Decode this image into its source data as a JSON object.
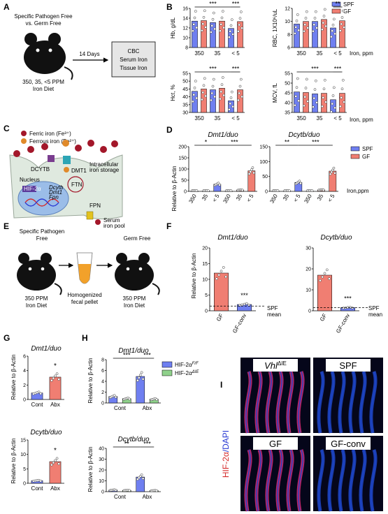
{
  "panel_letters": [
    "A",
    "B",
    "C",
    "D",
    "E",
    "F",
    "G",
    "H",
    "I"
  ],
  "colors": {
    "spf": "#6f7ff0",
    "gf": "#f07e72",
    "green": "#8fd18b",
    "iris_red": "#d42a77",
    "iris_blue": "#1e46c8"
  },
  "panelA": {
    "line1": "Specific Pathogen Free",
    "line2": "vs. Germ Free",
    "diet1": "350, 35, <5 PPM",
    "diet2": "Iron Diet",
    "arrow": "14 Days",
    "box": [
      "CBC",
      "Serum Iron",
      "Tissue Iron"
    ]
  },
  "panelB": {
    "legend": [
      {
        "name": "SPF",
        "color": "#6f7ff0"
      },
      {
        "name": "GF",
        "color": "#f07e72"
      }
    ],
    "x_title": "Iron, ppm",
    "groups": [
      "350",
      "35",
      "< 5"
    ],
    "charts": [
      {
        "ylabel": "Hb, g/dL",
        "yticks": [
          "8",
          "10",
          "12",
          "14",
          "16"
        ],
        "ymin": 8,
        "ymax": 16,
        "spf": [
          13.4,
          13.1,
          11.9
        ],
        "gf": [
          13.5,
          13.4,
          13.3
        ],
        "sig": [
          {
            "text": "***",
            "from": 0,
            "to": 4
          },
          {
            "text": "***",
            "from": 4,
            "to": 5
          }
        ]
      },
      {
        "ylabel": "RBC, 1X10⁶/uL",
        "yticks": [
          "6",
          "8",
          "10",
          "12"
        ],
        "ymin": 6,
        "ymax": 12,
        "spf": [
          9.6,
          10.0,
          9.0
        ],
        "gf": [
          10.0,
          10.3,
          10.1
        ],
        "sig": [
          {
            "text": "**",
            "from": 4,
            "to": 5
          }
        ]
      },
      {
        "ylabel": "Hct, %",
        "yticks": [
          "30",
          "35",
          "40",
          "45",
          "50",
          "55"
        ],
        "ymin": 30,
        "ymax": 55,
        "spf": [
          43.5,
          44.5,
          37.5
        ],
        "gf": [
          45.0,
          45.5,
          44.5
        ],
        "sig": [
          {
            "text": "***",
            "from": 0,
            "to": 4
          },
          {
            "text": "***",
            "from": 4,
            "to": 5
          }
        ]
      },
      {
        "ylabel": "MCV, fL",
        "yticks": [
          "35",
          "40",
          "45",
          "50",
          "55"
        ],
        "ymin": 35,
        "ymax": 55,
        "spf": [
          45.5,
          44.5,
          41.5
        ],
        "gf": [
          45.2,
          44.8,
          44.8
        ],
        "sig": [
          {
            "text": "***",
            "from": 0,
            "to": 4
          },
          {
            "text": "***",
            "from": 4,
            "to": 5
          }
        ]
      }
    ]
  },
  "panelC": {
    "ferric": "Ferric iron (Fe³⁺)",
    "ferrous": "Ferrous iron (Fe²⁺)",
    "dcytb": "DCYTB",
    "dmt1": "DMT1",
    "storage": [
      "Intracellular",
      "iron storage"
    ],
    "ftn": "FTN",
    "nucleus": "Nucleus",
    "hif": "HIF-2α",
    "genes": [
      "Dcytb",
      "Dmt1",
      "Fpn"
    ],
    "fpn": "FPN",
    "serum": [
      "Serum",
      "iron pool"
    ]
  },
  "panelD": {
    "ylabel": "Relative to β-Actin",
    "x_title": "Iron,ppm",
    "groups": [
      "350",
      "35",
      "< 5",
      "350",
      "35",
      "< 5"
    ],
    "legend": [
      {
        "name": "SPF",
        "color": "#6f7ff0"
      },
      {
        "name": "GF",
        "color": "#f07e72"
      }
    ],
    "charts": [
      {
        "title": "Dmt1/duo",
        "yticks": [
          "0",
          "50",
          "100",
          "150",
          "200"
        ],
        "ymax": 200,
        "values": [
          1,
          1,
          32,
          1,
          6,
          92
        ],
        "sig": [
          {
            "text": "*",
            "from": 0,
            "to": 2
          },
          {
            "text": "***",
            "from": 2,
            "to": 5
          }
        ]
      },
      {
        "title": "Dcytb/duo",
        "yticks": [
          "0",
          "50",
          "100",
          "150"
        ],
        "ymax": 150,
        "values": [
          1,
          1,
          30,
          1,
          5,
          68
        ],
        "sig": [
          {
            "text": "**",
            "from": 0,
            "to": 2
          },
          {
            "text": "***",
            "from": 2,
            "to": 5
          }
        ]
      }
    ]
  },
  "panelE": {
    "left_title": [
      "Specific Pathogen",
      "Free"
    ],
    "right_title": "Germ Free",
    "left_diet": [
      "350 PPM",
      "Iron Diet"
    ],
    "tube": [
      "Homogenized",
      "fecal pellet"
    ],
    "right_diet": [
      "350 PPM",
      "Iron Diet"
    ]
  },
  "panelF": {
    "ylabel": "Relative to β-Actin",
    "mean_label": [
      "SPF",
      "mean"
    ],
    "categories": [
      "GF",
      "GF-conv"
    ],
    "charts": [
      {
        "title": "Dmt1/duo",
        "yticks": [
          "0",
          "5",
          "10",
          "15",
          "20"
        ],
        "ymax": 20,
        "values": [
          12,
          2
        ],
        "spf_mean": 1.5,
        "sig": "***"
      },
      {
        "title": "Dcytb/duo",
        "yticks": [
          "0",
          "10",
          "20",
          "30"
        ],
        "ymax": 30,
        "values": [
          17,
          1.5
        ],
        "spf_mean": 1.5,
        "sig": "***"
      }
    ]
  },
  "panelG": {
    "ylabel": "Relative to β-Actin",
    "categories": [
      "Cont",
      "Abx"
    ],
    "charts": [
      {
        "title": "Dmt1/duo",
        "yticks": [
          "0",
          "2",
          "4",
          "6"
        ],
        "ymax": 6,
        "values": [
          0.9,
          3.1
        ],
        "sig": "*"
      },
      {
        "title": "Dcytb/duo",
        "yticks": [
          "0",
          "5",
          "10",
          "15"
        ],
        "ymax": 15,
        "values": [
          0.9,
          7.5
        ],
        "sig": "*"
      }
    ]
  },
  "panelH": {
    "ylabel": "Relative to β-Actin",
    "categories": [
      "Cont",
      "Abx"
    ],
    "legend": [
      {
        "name": "HIF-2α",
        "sup": "F/F",
        "color": "#6f7ff0"
      },
      {
        "name": "HIF-2α",
        "sup": "ΔIE",
        "color": "#8fd18b"
      }
    ],
    "charts": [
      {
        "title": "Dmt1/duo",
        "yticks": [
          "0",
          "2",
          "4",
          "6",
          "8"
        ],
        "ymax": 8,
        "values": [
          1.2,
          0.8,
          4.9,
          0.7
        ],
        "sig": [
          {
            "text": "***",
            "from": 0,
            "to": 2
          },
          {
            "text": "***",
            "from": 2,
            "to": 3
          }
        ]
      },
      {
        "title": "Dcytb/duo",
        "yticks": [
          "0",
          "10",
          "20",
          "30",
          "40"
        ],
        "ymax": 40,
        "values": [
          1.5,
          1.2,
          13.5,
          1.0
        ],
        "sig": [
          {
            "text": "**",
            "from": 0,
            "to": 2
          },
          {
            "text": "***",
            "from": 2,
            "to": 3
          }
        ]
      }
    ]
  },
  "panelI": {
    "side_label_red": "HIF-2α",
    "side_label_blue": "/DAPI",
    "tiles": [
      {
        "label": "Vhl",
        "sup": "ΔIE"
      },
      {
        "label": "SPF",
        "sup": ""
      },
      {
        "label": "GF",
        "sup": ""
      },
      {
        "label": "GF-conv",
        "sup": ""
      }
    ]
  }
}
